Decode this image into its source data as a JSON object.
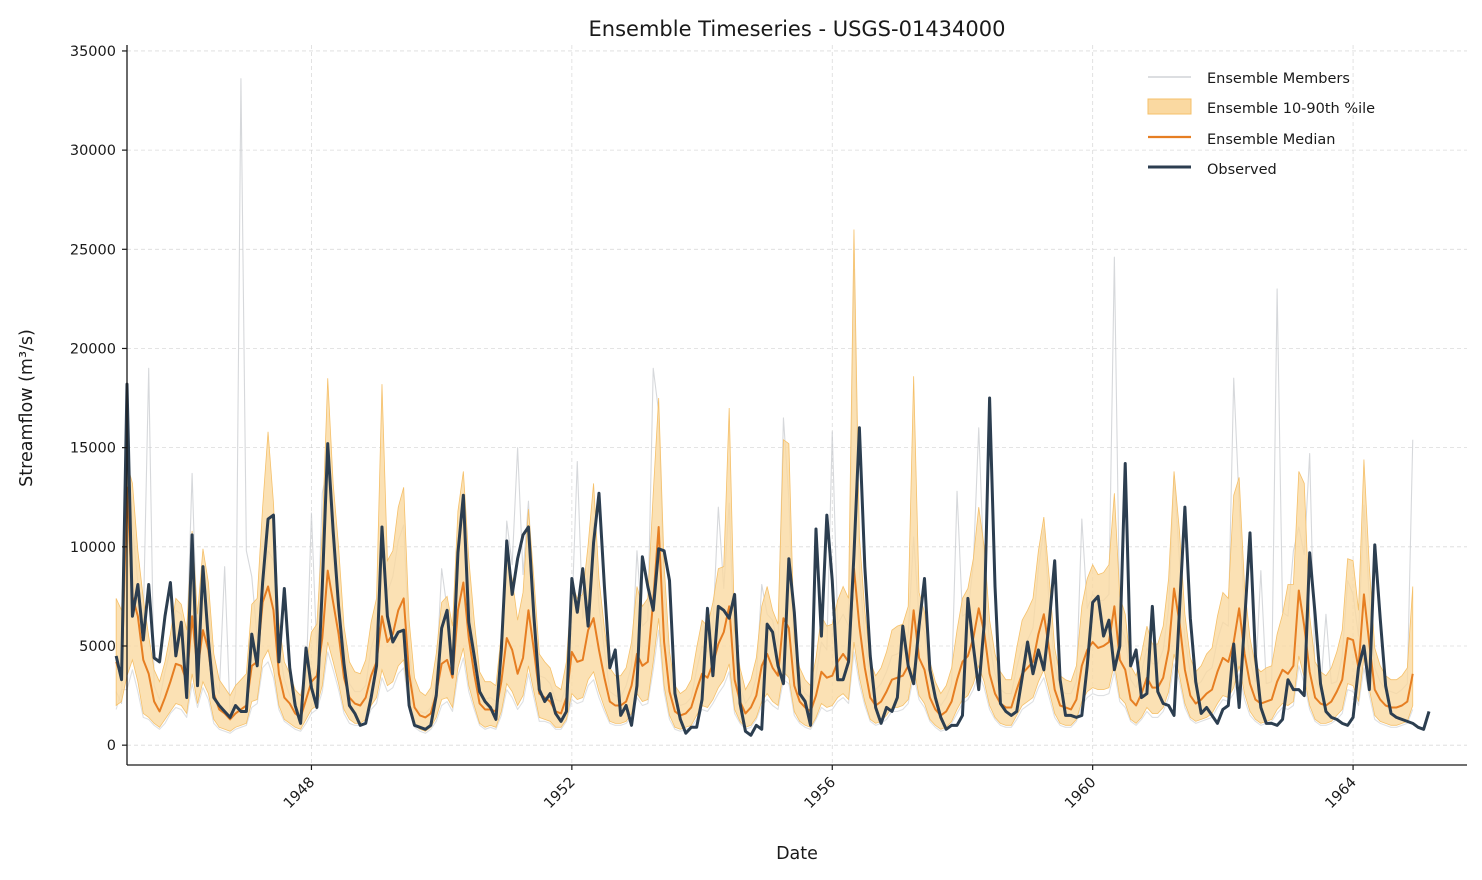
{
  "chart_data": {
    "type": "line",
    "title": "Ensemble Timeseries - USGS-01434000",
    "xlabel": "Date",
    "ylabel": "Streamflow (m³/s)",
    "xlim": [
      "1945-03",
      "1965-10"
    ],
    "ylim": [
      -1000,
      35300
    ],
    "x_ticks": [
      "1948",
      "1952",
      "1956",
      "1960",
      "1964"
    ],
    "y_ticks": [
      0,
      5000,
      10000,
      15000,
      20000,
      25000,
      30000,
      35000
    ],
    "grid": true,
    "legend_position": "top-right",
    "legend": [
      "Ensemble Members",
      "Ensemble 10-90th %ile",
      "Ensemble Median",
      "Observed"
    ],
    "colors": {
      "members": "#c8cbcf",
      "band_fill": "#fad9a1",
      "band_edge": "#f5c06a",
      "median": "#e67e22",
      "observed": "#2c3e50"
    },
    "x_start": "1945-01",
    "x_step": "1 month",
    "observed": [
      4500,
      3300,
      18200,
      6500,
      8100,
      5300,
      8100,
      4400,
      4200,
      6500,
      8200,
      4500,
      6200,
      2400,
      10600,
      3000,
      9000,
      5300,
      2400,
      2000,
      1700,
      1400,
      2000,
      1700,
      1700,
      5600,
      4000,
      8200,
      11400,
      11600,
      4200,
      7900,
      3900,
      2000,
      1100,
      4900,
      2900,
      1900,
      8000,
      15200,
      10800,
      7000,
      4100,
      2000,
      1600,
      1000,
      1100,
      2400,
      4000,
      11000,
      6500,
      5200,
      5700,
      5800,
      2000,
      1000,
      900,
      800,
      1000,
      2500,
      5900,
      6800,
      3600,
      9700,
      12600,
      6200,
      4500,
      2700,
      2200,
      1900,
      1300,
      4800,
      10300,
      7600,
      9400,
      10600,
      11000,
      6500,
      2800,
      2200,
      2600,
      1600,
      1200,
      1700,
      8400,
      6700,
      8900,
      6000,
      10200,
      12700,
      8000,
      3900,
      4800,
      1500,
      2000,
      1000,
      3000,
      9500,
      8000,
      6800,
      9900,
      9800,
      8300,
      2600,
      1300,
      600,
      900,
      900,
      2300,
      6900,
      3500,
      7000,
      6800,
      6400,
      7600,
      2100,
      700,
      500,
      1000,
      800,
      6100,
      5700,
      4000,
      3100,
      9400,
      6700,
      2600,
      2200,
      1000,
      10900,
      5500,
      11600,
      8300,
      3300,
      3300,
      4200,
      9600,
      16000,
      9000,
      4500,
      1900,
      1100,
      1900,
      1700,
      2400,
      6000,
      4000,
      3100,
      6000,
      8400,
      3800,
      2400,
      1400,
      800,
      1000,
      1000,
      1500,
      7400,
      5000,
      2800,
      6100,
      17500,
      8000,
      2100,
      1700,
      1500,
      1700,
      3400,
      5200,
      3600,
      4800,
      3800,
      6200,
      9300,
      3300,
      1500,
      1500,
      1400,
      1500,
      4000,
      7200,
      7500,
      5500,
      6300,
      3800,
      5000,
      14200,
      4000,
      4800,
      2400,
      2600,
      7000,
      2700,
      2100,
      2000,
      1500,
      6800,
      12000,
      6400,
      3200,
      1600,
      1900,
      1500,
      1100,
      1800,
      2000,
      5100,
      1900,
      6200,
      10700,
      4500,
      1900,
      1100,
      1100,
      1000,
      1300,
      3300,
      2800,
      2800,
      2500,
      9700,
      6600,
      3100,
      1700,
      1400,
      1300,
      1100,
      1000,
      1400,
      3900,
      5000,
      2800,
      10100,
      6400,
      3000,
      1600,
      1400,
      1300,
      1200,
      1100,
      900,
      800,
      1700
    ],
    "median": [
      4200,
      3400,
      13000,
      7500,
      6500,
      4300,
      3600,
      2200,
      1700,
      2400,
      3200,
      4100,
      4000,
      3200,
      6500,
      3800,
      5800,
      4800,
      2600,
      1800,
      1600,
      1300,
      1600,
      1800,
      2000,
      4000,
      4200,
      7200,
      8000,
      6800,
      3600,
      2400,
      2100,
      1600,
      1400,
      2300,
      3200,
      3500,
      5400,
      8800,
      7200,
      5600,
      3400,
      2400,
      2100,
      2000,
      2400,
      3500,
      4200,
      6500,
      5200,
      5600,
      6800,
      7400,
      3600,
      1900,
      1500,
      1400,
      1600,
      2600,
      4100,
      4300,
      3400,
      6800,
      8200,
      5400,
      3600,
      2100,
      1800,
      1800,
      1700,
      3200,
      5400,
      4800,
      3600,
      4400,
      6800,
      4800,
      2600,
      2400,
      2200,
      1700,
      1600,
      2400,
      4700,
      4200,
      4300,
      5800,
      6400,
      4800,
      3400,
      2200,
      2000,
      2000,
      2200,
      3000,
      4600,
      4000,
      4200,
      7300,
      11000,
      5200,
      2700,
      1700,
      1500,
      1600,
      1900,
      2800,
      3600,
      3400,
      4100,
      5100,
      5700,
      7000,
      3300,
      2200,
      1600,
      1900,
      2500,
      4000,
      4600,
      3900,
      3500,
      6400,
      5900,
      3000,
      2200,
      1900,
      1700,
      2500,
      3700,
      3400,
      3500,
      4200,
      4600,
      4200,
      8900,
      6000,
      3900,
      2400,
      2000,
      2200,
      2700,
      3300,
      3400,
      3500,
      4000,
      6800,
      4400,
      3800,
      2400,
      1800,
      1500,
      1700,
      2200,
      3300,
      4200,
      4500,
      5400,
      6900,
      5700,
      3600,
      2600,
      2100,
      1900,
      1900,
      2800,
      3600,
      3900,
      4200,
      5600,
      6600,
      4800,
      2800,
      2000,
      1900,
      1800,
      2300,
      4000,
      4800,
      5200,
      4900,
      5000,
      5200,
      7000,
      4300,
      3800,
      2300,
      2000,
      2600,
      3400,
      2900,
      2900,
      3400,
      4800,
      7900,
      6200,
      3800,
      2500,
      2100,
      2300,
      2600,
      2800,
      3700,
      4400,
      4200,
      5200,
      6900,
      4600,
      3100,
      2300,
      2100,
      2200,
      2300,
      3200,
      3800,
      3600,
      4000,
      7800,
      6000,
      3700,
      2400,
      2100,
      2000,
      2200,
      2700,
      3300,
      5400,
      5300,
      3900,
      7600,
      5100,
      2800,
      2300,
      2000,
      1900,
      1900,
      2000,
      2200,
      3600
    ],
    "band_low": [
      2000,
      2200,
      3500,
      4300,
      3200,
      1600,
      1400,
      1100,
      900,
      1300,
      1700,
      2100,
      2000,
      1600,
      3600,
      2100,
      3200,
      2600,
      1300,
      900,
      800,
      700,
      900,
      1000,
      1100,
      2200,
      2300,
      4300,
      4800,
      3800,
      2000,
      1300,
      1100,
      900,
      800,
      1300,
      1800,
      2000,
      3000,
      5200,
      4200,
      3100,
      1800,
      1300,
      1100,
      1100,
      1300,
      2000,
      2400,
      3800,
      3000,
      3200,
      4000,
      4300,
      2000,
      1000,
      800,
      700,
      900,
      1400,
      2300,
      2400,
      1900,
      3900,
      4900,
      3000,
      2000,
      1100,
      900,
      1000,
      900,
      1700,
      3100,
      2700,
      2000,
      2500,
      4000,
      2700,
      1400,
      1300,
      1200,
      900,
      900,
      1300,
      2600,
      2300,
      2400,
      3300,
      3700,
      2700,
      1900,
      1200,
      1100,
      1100,
      1200,
      1600,
      2600,
      2200,
      2300,
      4200,
      6400,
      3000,
      1500,
      900,
      800,
      900,
      1000,
      1500,
      2000,
      1900,
      2300,
      2900,
      3300,
      4100,
      1800,
      1200,
      900,
      1000,
      1400,
      2200,
      2600,
      2200,
      2000,
      3700,
      3400,
      1700,
      1200,
      1000,
      900,
      1400,
      2100,
      1900,
      2000,
      2400,
      2600,
      2300,
      5200,
      3400,
      2200,
      1300,
      1100,
      1200,
      1500,
      1900,
      1900,
      2000,
      2300,
      3900,
      2500,
      2100,
      1300,
      1000,
      800,
      900,
      1200,
      1800,
      2300,
      2500,
      3100,
      4000,
      3200,
      2000,
      1400,
      1100,
      1000,
      1000,
      1500,
      2000,
      2200,
      2400,
      3200,
      3800,
      2700,
      1600,
      1100,
      1000,
      1000,
      1300,
      2200,
      2700,
      2900,
      2800,
      2800,
      2900,
      4100,
      2400,
      2100,
      1300,
      1100,
      1400,
      1900,
      1600,
      1600,
      1900,
      2700,
      4600,
      3500,
      2100,
      1400,
      1200,
      1300,
      1400,
      1600,
      2100,
      2500,
      2400,
      2900,
      4000,
      2600,
      1700,
      1300,
      1100,
      1200,
      1300,
      1800,
      2100,
      2000,
      2200,
      4500,
      3400,
      2000,
      1300,
      1100,
      1100,
      1200,
      1500,
      1800,
      3100,
      3000,
      2200,
      4400,
      2800,
      1500,
      1200,
      1100,
      1000,
      1000,
      1100,
      1200,
      2000
    ],
    "band_high": [
      7400,
      6800,
      14200,
      13200,
      9800,
      7400,
      5500,
      3800,
      3200,
      4200,
      5600,
      7400,
      7100,
      5800,
      10800,
      6600,
      9900,
      8200,
      4600,
      3300,
      2900,
      2500,
      3000,
      3300,
      3600,
      7100,
      7400,
      12000,
      15800,
      12200,
      6200,
      4200,
      3600,
      2800,
      2500,
      4000,
      5700,
      6100,
      10700,
      18500,
      13200,
      10000,
      6000,
      4200,
      3700,
      3600,
      4300,
      6200,
      7400,
      18200,
      9300,
      9800,
      12000,
      13000,
      6300,
      3400,
      2700,
      2500,
      2900,
      4600,
      7200,
      7500,
      6000,
      11800,
      13800,
      9400,
      6300,
      3700,
      3200,
      3200,
      3000,
      5600,
      9500,
      8400,
      6300,
      7700,
      11900,
      8400,
      4600,
      4200,
      3900,
      3000,
      2800,
      4200,
      8200,
      7400,
      7600,
      10100,
      13200,
      8400,
      5900,
      3900,
      3500,
      3500,
      3900,
      5200,
      8000,
      7000,
      7400,
      12700,
      17500,
      9100,
      4700,
      3000,
      2600,
      2800,
      3300,
      4900,
      6300,
      6000,
      7200,
      8900,
      9000,
      17000,
      5800,
      3900,
      2800,
      3300,
      4400,
      7000,
      8000,
      6800,
      6100,
      15400,
      15200,
      5300,
      3900,
      3300,
      3000,
      4400,
      6500,
      6000,
      6100,
      7300,
      8000,
      7400,
      26000,
      10500,
      6800,
      4200,
      3500,
      3900,
      4700,
      5800,
      6000,
      6100,
      7000,
      18600,
      7700,
      6700,
      4200,
      3200,
      2600,
      3000,
      3900,
      5800,
      7400,
      7900,
      9400,
      12000,
      10000,
      6300,
      4600,
      3700,
      3300,
      3300,
      4900,
      6300,
      6800,
      7400,
      9800,
      11500,
      8400,
      4900,
      3500,
      3300,
      3200,
      4000,
      7000,
      8400,
      9100,
      8600,
      8700,
      9100,
      12700,
      7500,
      6600,
      4000,
      3500,
      4600,
      6000,
      5100,
      5100,
      6000,
      8400,
      13800,
      10800,
      6600,
      4400,
      3700,
      4000,
      4600,
      4900,
      6500,
      7700,
      7400,
      12600,
      13500,
      8000,
      5400,
      4000,
      3700,
      3900,
      4000,
      5600,
      6600,
      8100,
      8100,
      13800,
      13200,
      6500,
      4200,
      3700,
      3500,
      3900,
      4700,
      5800,
      9400,
      9300,
      6800,
      14400,
      9000,
      4900,
      4000,
      3500,
      3300,
      3300,
      3500,
      3900,
      8000
    ],
    "members_peak": [
      2700,
      2100,
      15000,
      11000,
      8200,
      6200,
      19000,
      3000,
      2300,
      3700,
      4800,
      6800,
      6600,
      4800,
      13700,
      4800,
      8500,
      7400,
      3300,
      2600,
      9000,
      1600,
      2600,
      33600,
      9800,
      8500,
      5400,
      6800,
      9800,
      9300,
      5000,
      3300,
      2500,
      1900,
      1700,
      3100,
      11700,
      4600,
      12700,
      14100,
      9200,
      7500,
      5200,
      3100,
      2700,
      2700,
      3000,
      4900,
      5800,
      10800,
      7700,
      8500,
      10300,
      11100,
      5000,
      1900,
      1700,
      1600,
      1900,
      3400,
      8900,
      6900,
      4600,
      10300,
      12000,
      7700,
      5000,
      2700,
      2300,
      2400,
      2200,
      4500,
      11300,
      9100,
      15000,
      8600,
      12300,
      7000,
      3500,
      3400,
      3100,
      2300,
      2200,
      3000,
      6600,
      14300,
      6400,
      8700,
      11200,
      7000,
      4800,
      2700,
      2500,
      2400,
      3000,
      4000,
      9800,
      6000,
      6300,
      19000,
      16800,
      7800,
      3900,
      2300,
      2000,
      2100,
      2400,
      3800,
      5000,
      4700,
      6000,
      12000,
      7900,
      12200,
      4700,
      3000,
      2100,
      2500,
      3400,
      8100,
      6600,
      6300,
      5000,
      16500,
      12400,
      4400,
      3100,
      2600,
      2400,
      3500,
      5200,
      4800,
      15800,
      6100,
      6600,
      6000,
      24000,
      8700,
      5500,
      3300,
      2800,
      3100,
      3700,
      4500,
      4600,
      4800,
      5600,
      10500,
      6400,
      5700,
      3400,
      2500,
      2000,
      2400,
      3100,
      12800,
      6500,
      6700,
      9100,
      16000,
      8500,
      5100,
      3600,
      2800,
      2600,
      2600,
      3900,
      5000,
      5300,
      5900,
      8900,
      10900,
      7100,
      4000,
      2800,
      2600,
      2600,
      3200,
      11400,
      6900,
      7600,
      7300,
      7300,
      7600,
      24600,
      6100,
      5400,
      3300,
      2900,
      3700,
      4900,
      4100,
      4100,
      4800,
      6900,
      13600,
      9300,
      5400,
      3600,
      3000,
      3200,
      3700,
      3900,
      5300,
      6200,
      6000,
      18500,
      12200,
      6400,
      4300,
      3200,
      8800,
      3100,
      3200,
      23000,
      6700,
      6500,
      9800,
      11000,
      9600,
      14700,
      3400,
      2700,
      6600,
      3100,
      3200,
      4500,
      8300,
      7600,
      5500,
      12100,
      7400,
      3900,
      3200,
      2800,
      2700,
      2600,
      2800,
      3100,
      15400
    ],
    "members_trough": [
      1800,
      2800,
      2800,
      3800,
      2700,
      1400,
      1300,
      1000,
      800,
      1100,
      1600,
      1900,
      1800,
      1400,
      3100,
      1900,
      2900,
      2300,
      1100,
      800,
      700,
      600,
      800,
      900,
      1000,
      1900,
      2100,
      3900,
      4200,
      3400,
      1800,
      1200,
      1000,
      800,
      700,
      1100,
      1600,
      1800,
      2700,
      4700,
      3800,
      2800,
      1600,
      1100,
      1000,
      1000,
      1100,
      1800,
      2100,
      3400,
      2700,
      2900,
      3600,
      3900,
      1800,
      900,
      700,
      600,
      800,
      1200,
      2000,
      2200,
      1700,
      3500,
      4400,
      2700,
      1800,
      1000,
      800,
      900,
      800,
      1500,
      2800,
      2400,
      1800,
      2200,
      3600,
      2400,
      1200,
      1200,
      1100,
      800,
      800,
      1200,
      2300,
      2100,
      2200,
      3000,
      3300,
      2400,
      1700,
      1100,
      1000,
      1000,
      1100,
      1400,
      2400,
      2000,
      2100,
      3800,
      5800,
      2700,
      1300,
      800,
      700,
      800,
      900,
      1300,
      1800,
      1700,
      2100,
      2600,
      3000,
      3700,
      1600,
      1100,
      800,
      900,
      1300,
      2000,
      2300,
      2000,
      1800,
      3300,
      3100,
      1500,
      1100,
      900,
      800,
      1300,
      1900,
      1700,
      1800,
      2200,
      2400,
      2100,
      4700,
      3100,
      2000,
      1200,
      1000,
      1100,
      1300,
      1700,
      1700,
      1800,
      2100,
      3500,
      2300,
      1900,
      1200,
      900,
      700,
      800,
      1100,
      1600,
      2100,
      2300,
      2800,
      3600,
      2900,
      1800,
      1300,
      1000,
      900,
      900,
      1300,
      1800,
      2000,
      2200,
      2900,
      3400,
      2400,
      1400,
      1000,
      900,
      900,
      1200,
      2000,
      2400,
      2600,
      2500,
      2500,
      2600,
      3700,
      2200,
      1900,
      1200,
      1000,
      1300,
      1700,
      1400,
      1400,
      1700,
      2400,
      4100,
      3200,
      1900,
      1300,
      1100,
      1200,
      1300,
      1400,
      1900,
      2300,
      2200,
      2600,
      3600,
      2300,
      1500,
      1200,
      1000,
      1100,
      1200,
      1600,
      1900,
      1800,
      2000,
      4000,
      3100,
      1800,
      1200,
      1000,
      1000,
      1100,
      1300,
      1600,
      2800,
      2700,
      2000,
      3900,
      2500,
      1300,
      1100,
      1000,
      900,
      900,
      1000,
      1100,
      1800
    ]
  }
}
